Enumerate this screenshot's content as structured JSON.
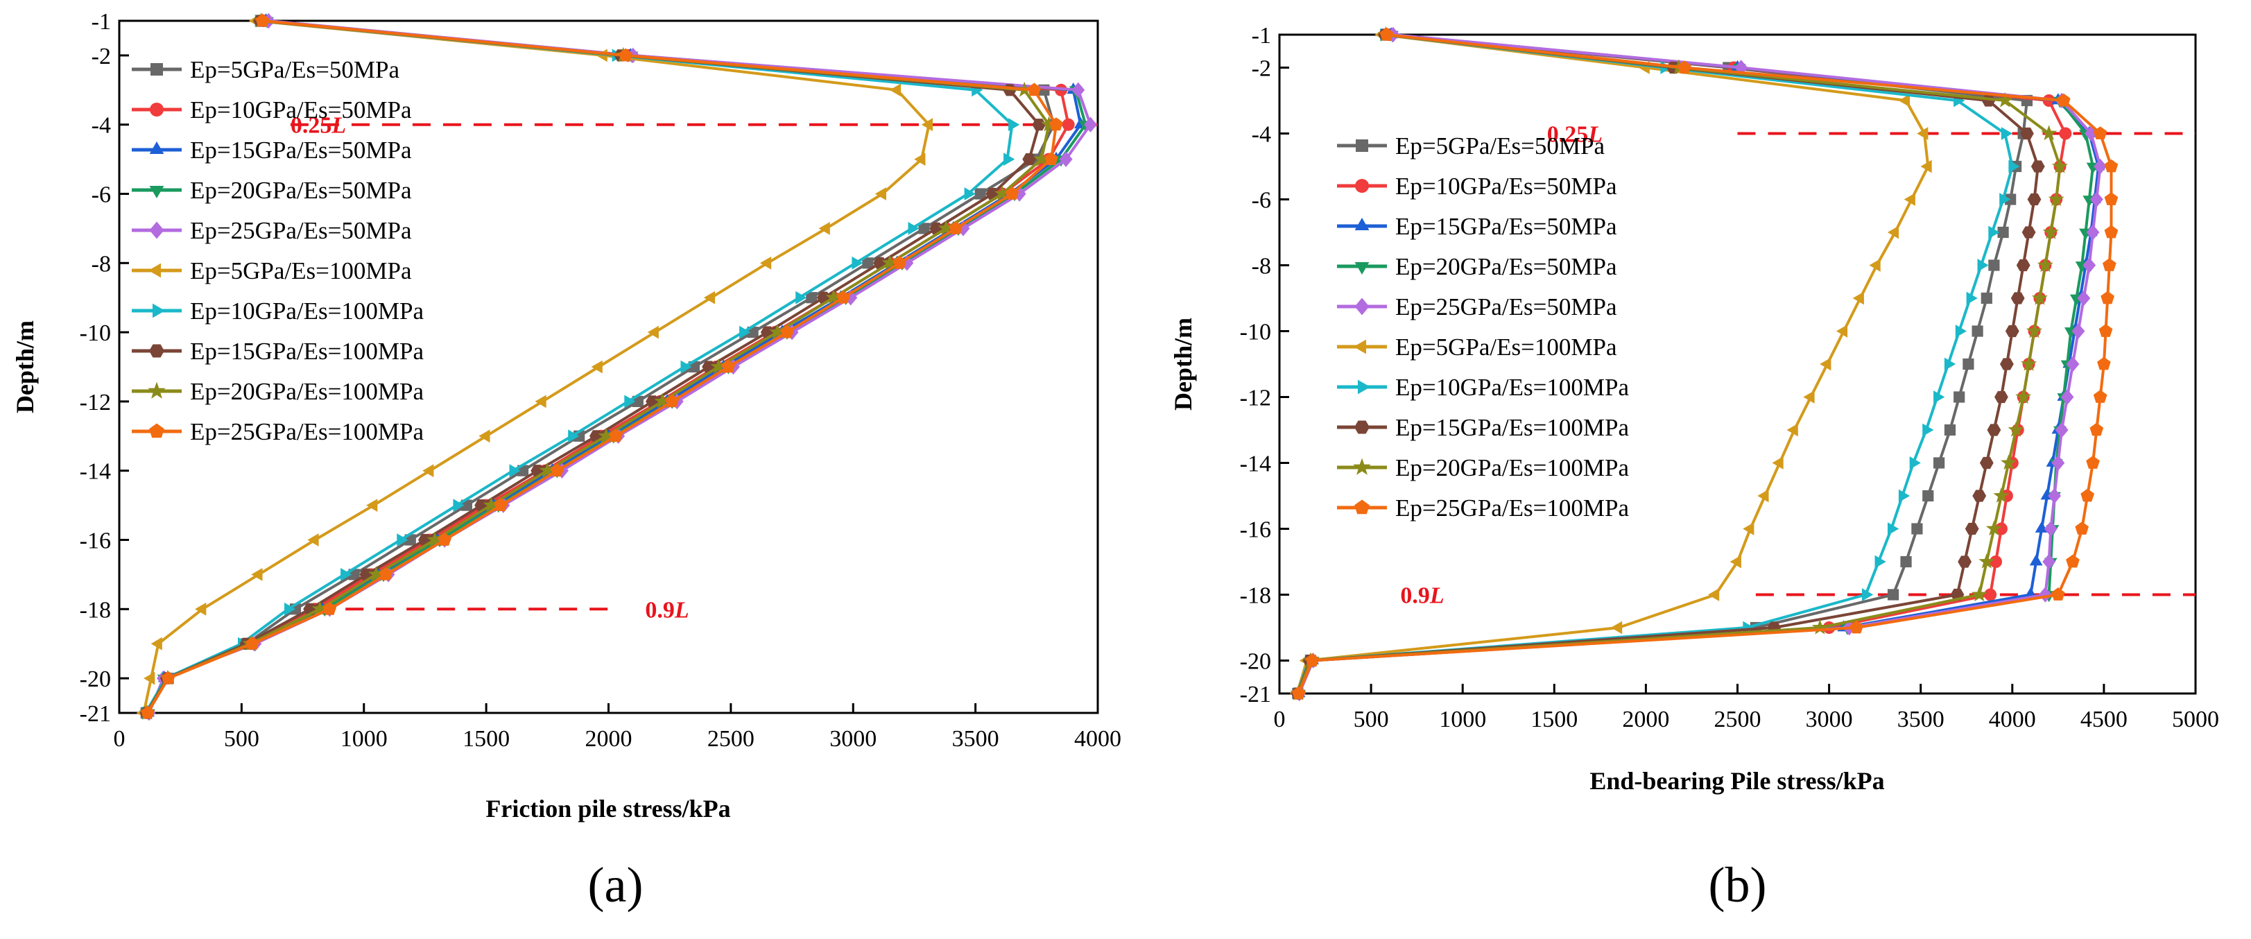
{
  "chart_data": [
    {
      "type": "line",
      "panel_label": "(a)",
      "xlabel": "Friction pile stress/kPa",
      "ylabel": "Depth/m",
      "xlim": [
        0,
        4000
      ],
      "ylim": [
        -21,
        -1
      ],
      "xticks": [
        0,
        500,
        1000,
        1500,
        2000,
        2500,
        3000,
        3500,
        4000
      ],
      "yticks": [
        -1,
        -2,
        -4,
        -6,
        -8,
        -10,
        -12,
        -14,
        -16,
        -18,
        -20,
        -21
      ],
      "legend_position": "top-left",
      "reference_lines": [
        {
          "y": -4,
          "x_from": 700,
          "x_to": 4000,
          "label": "0.25",
          "label_unit": "L",
          "label_x": 700
        },
        {
          "y": -18,
          "x_from": 800,
          "x_to": 2020,
          "label": "0.9",
          "label_unit": "L",
          "label_x": 2150
        }
      ],
      "depth": [
        -1,
        -2,
        -3,
        -4,
        -5,
        -6,
        -7,
        -8,
        -9,
        -10,
        -11,
        -12,
        -13,
        -14,
        -15,
        -16,
        -17,
        -18,
        -19,
        -20,
        -21
      ],
      "series": [
        {
          "name": "Ep=5GPa/Es=50MPa",
          "color": "#686868",
          "marker": "square",
          "values": [
            580,
            2060,
            3780,
            3820,
            3750,
            3520,
            3290,
            3060,
            2830,
            2590,
            2350,
            2120,
            1880,
            1650,
            1420,
            1190,
            960,
            720,
            520,
            200,
            110
          ]
        },
        {
          "name": "Ep=10GPa/Es=50MPa",
          "color": "#f03c3c",
          "marker": "circle",
          "values": [
            590,
            2080,
            3850,
            3880,
            3800,
            3610,
            3380,
            3150,
            2920,
            2680,
            2440,
            2210,
            1970,
            1740,
            1500,
            1270,
            1030,
            800,
            540,
            190,
            115
          ]
        },
        {
          "name": "Ep=15GPa/Es=50MPa",
          "color": "#1d5fd6",
          "marker": "triangle-up",
          "values": [
            600,
            2090,
            3900,
            3930,
            3830,
            3640,
            3410,
            3180,
            2950,
            2710,
            2470,
            2240,
            2000,
            1770,
            1530,
            1300,
            1060,
            830,
            545,
            185,
            118
          ]
        },
        {
          "name": "Ep=20GPa/Es=50MPa",
          "color": "#1a9a5e",
          "marker": "triangle-down",
          "values": [
            605,
            2095,
            3910,
            3950,
            3850,
            3660,
            3430,
            3200,
            2970,
            2730,
            2490,
            2260,
            2020,
            1790,
            1550,
            1310,
            1080,
            840,
            550,
            182,
            120
          ]
        },
        {
          "name": "Ep=25GPa/Es=50MPa",
          "color": "#b36be0",
          "marker": "diamond",
          "values": [
            610,
            2100,
            3920,
            3970,
            3870,
            3680,
            3450,
            3220,
            2990,
            2750,
            2510,
            2280,
            2040,
            1810,
            1570,
            1330,
            1100,
            860,
            555,
            180,
            122
          ]
        },
        {
          "name": "Ep=5GPa/Es=100MPa",
          "color": "#d49a1a",
          "marker": "triangle-left",
          "values": [
            560,
            1980,
            3180,
            3310,
            3280,
            3120,
            2890,
            2650,
            2420,
            2190,
            1960,
            1730,
            1500,
            1270,
            1040,
            800,
            570,
            340,
            160,
            130,
            100
          ]
        },
        {
          "name": "Ep=10GPa/Es=100MPa",
          "color": "#1ab8c9",
          "marker": "triangle-right",
          "values": [
            570,
            2030,
            3500,
            3650,
            3630,
            3470,
            3240,
            3010,
            2780,
            2550,
            2310,
            2080,
            1850,
            1610,
            1380,
            1150,
            920,
            690,
            500,
            190,
            108
          ]
        },
        {
          "name": "Ep=15GPa/Es=100MPa",
          "color": "#7a4536",
          "marker": "hexagon",
          "values": [
            575,
            2050,
            3640,
            3760,
            3720,
            3570,
            3340,
            3110,
            2880,
            2650,
            2410,
            2180,
            1950,
            1710,
            1480,
            1250,
            1010,
            780,
            520,
            195,
            112
          ]
        },
        {
          "name": "Ep=20GPa/Es=100MPa",
          "color": "#8b8b1a",
          "marker": "star",
          "values": [
            580,
            2060,
            3700,
            3800,
            3770,
            3610,
            3380,
            3150,
            2920,
            2690,
            2450,
            2220,
            1990,
            1750,
            1520,
            1290,
            1050,
            820,
            535,
            198,
            114
          ]
        },
        {
          "name": "Ep=25GPa/Es=100MPa",
          "color": "#f26b10",
          "marker": "pentagon",
          "values": [
            585,
            2070,
            3740,
            3830,
            3810,
            3650,
            3420,
            3190,
            2960,
            2730,
            2490,
            2260,
            2030,
            1790,
            1560,
            1330,
            1090,
            860,
            545,
            200,
            116
          ]
        }
      ]
    },
    {
      "type": "line",
      "panel_label": "(b)",
      "xlabel": "End-bearing Pile stress/kPa",
      "ylabel": "Depth/m",
      "xlim": [
        0,
        5000
      ],
      "ylim": [
        -21,
        -1
      ],
      "xticks": [
        0,
        500,
        1000,
        1500,
        2000,
        2500,
        3000,
        3500,
        4000,
        4500,
        5000
      ],
      "yticks": [
        -1,
        -2,
        -4,
        -6,
        -8,
        -10,
        -12,
        -14,
        -16,
        -18,
        -20,
        -21
      ],
      "legend_position": "top-left",
      "reference_lines": [
        {
          "y": -4,
          "x_from": 2500,
          "x_to": 5000,
          "label": "0.25",
          "label_unit": "L",
          "label_x": 1460
        },
        {
          "y": -18,
          "x_from": 2600,
          "x_to": 5000,
          "label": "0.9",
          "label_unit": "L",
          "label_x": 660
        }
      ],
      "depth": [
        -1,
        -2,
        -3,
        -4,
        -5,
        -6,
        -7,
        -8,
        -9,
        -10,
        -11,
        -12,
        -13,
        -14,
        -15,
        -16,
        -17,
        -18,
        -19,
        -20,
        -21
      ],
      "series": [
        {
          "name": "Ep=5GPa/Es=50MPa",
          "color": "#686868",
          "marker": "square",
          "values": [
            590,
            2450,
            4080,
            4060,
            4020,
            3990,
            3950,
            3900,
            3860,
            3810,
            3760,
            3710,
            3660,
            3600,
            3540,
            3480,
            3420,
            3350,
            2600,
            170,
            100
          ]
        },
        {
          "name": "Ep=10GPa/Es=50MPa",
          "color": "#f03c3c",
          "marker": "circle",
          "values": [
            600,
            2480,
            4200,
            4290,
            4260,
            4240,
            4210,
            4180,
            4150,
            4120,
            4090,
            4060,
            4030,
            4000,
            3970,
            3940,
            3910,
            3880,
            3000,
            175,
            104
          ]
        },
        {
          "name": "Ep=15GPa/Es=50MPa",
          "color": "#1d5fd6",
          "marker": "triangle-up",
          "values": [
            610,
            2500,
            4250,
            4420,
            4470,
            4450,
            4430,
            4400,
            4370,
            4340,
            4310,
            4280,
            4250,
            4220,
            4190,
            4160,
            4130,
            4100,
            3080,
            180,
            106
          ]
        },
        {
          "name": "Ep=20GPa/Es=50MPa",
          "color": "#1a9a5e",
          "marker": "triangle-down",
          "values": [
            615,
            2510,
            4260,
            4400,
            4440,
            4420,
            4400,
            4380,
            4350,
            4320,
            4300,
            4280,
            4260,
            4240,
            4230,
            4220,
            4210,
            4200,
            3100,
            182,
            107
          ]
        },
        {
          "name": "Ep=25GPa/Es=50MPa",
          "color": "#b36be0",
          "marker": "diamond",
          "values": [
            620,
            2520,
            4270,
            4430,
            4480,
            4460,
            4440,
            4420,
            4390,
            4360,
            4330,
            4300,
            4270,
            4250,
            4230,
            4210,
            4200,
            4180,
            3110,
            184,
            108
          ]
        },
        {
          "name": "Ep=5GPa/Es=100MPa",
          "color": "#d49a1a",
          "marker": "triangle-left",
          "values": [
            560,
            2000,
            3420,
            3520,
            3540,
            3450,
            3360,
            3260,
            3170,
            3080,
            2990,
            2900,
            2810,
            2730,
            2650,
            2570,
            2500,
            2380,
            1850,
            150,
            96
          ]
        },
        {
          "name": "Ep=10GPa/Es=100MPa",
          "color": "#1ab8c9",
          "marker": "triangle-right",
          "values": [
            570,
            2100,
            3700,
            3960,
            4000,
            3950,
            3890,
            3830,
            3770,
            3710,
            3650,
            3590,
            3530,
            3460,
            3400,
            3340,
            3270,
            3200,
            2550,
            160,
            98
          ]
        },
        {
          "name": "Ep=15GPa/Es=100MPa",
          "color": "#7a4536",
          "marker": "hexagon",
          "values": [
            575,
            2150,
            3870,
            4080,
            4140,
            4120,
            4090,
            4060,
            4030,
            4000,
            3970,
            3940,
            3900,
            3860,
            3820,
            3780,
            3740,
            3700,
            2700,
            165,
            100
          ]
        },
        {
          "name": "Ep=20GPa/Es=100MPa",
          "color": "#8b8b1a",
          "marker": "star",
          "values": [
            580,
            2180,
            3960,
            4200,
            4260,
            4240,
            4210,
            4180,
            4150,
            4120,
            4090,
            4060,
            4020,
            3980,
            3940,
            3900,
            3860,
            3820,
            2950,
            170,
            102
          ]
        },
        {
          "name": "Ep=25GPa/Es=100MPa",
          "color": "#f26b10",
          "marker": "pentagon",
          "values": [
            585,
            2210,
            4280,
            4480,
            4540,
            4540,
            4540,
            4530,
            4520,
            4510,
            4500,
            4480,
            4460,
            4440,
            4410,
            4380,
            4330,
            4250,
            3150,
            180,
            105
          ]
        }
      ]
    }
  ]
}
